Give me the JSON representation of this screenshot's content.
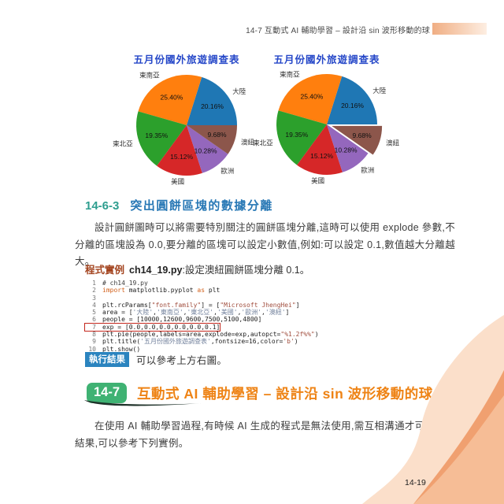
{
  "page": {
    "header_text": "14-7  互動式 AI 輔助學習 – 設計沿 sin 波形移動的球",
    "page_number": "14-19"
  },
  "colors": {
    "accent_green": "#3fb273",
    "accent_orange": "#ee8315",
    "result_badge_blue": "#2b84bf",
    "section_number_teal": "#2e9e8f",
    "section_title_blue": "#2878b5",
    "example_label_red": "#a3441f",
    "highlight_box_red": "#c3261c",
    "pie_title_blue": "#2547c8",
    "header_bar_orange": "#f0ae83"
  },
  "chart_data": [
    {
      "type": "pie",
      "title": "五月份國外旅遊調查表",
      "labels": [
        "大陸",
        "東南亞",
        "東北亞",
        "美國",
        "歐洲",
        "澳紐"
      ],
      "values": [
        10000,
        12600,
        9600,
        7500,
        5100,
        4800
      ],
      "percent_labels": [
        "20.16%",
        "25.40%",
        "19.35%",
        "15.12%",
        "10.28%",
        "9.68%"
      ],
      "colors": [
        "#1f77b4",
        "#ff7f0e",
        "#2ca02c",
        "#d62728",
        "#9467bd",
        "#8c564b"
      ],
      "explode": [
        0,
        0,
        0,
        0,
        0,
        0
      ],
      "start_angle": 0,
      "direction": "counterclockwise",
      "legend": false
    },
    {
      "type": "pie",
      "title": "五月份國外旅遊調查表",
      "labels": [
        "大陸",
        "東南亞",
        "東北亞",
        "美國",
        "歐洲",
        "澳紐"
      ],
      "values": [
        10000,
        12600,
        9600,
        7500,
        5100,
        4800
      ],
      "percent_labels": [
        "20.16%",
        "25.40%",
        "19.35%",
        "15.12%",
        "10.28%",
        "9.68%"
      ],
      "colors": [
        "#1f77b4",
        "#ff7f0e",
        "#2ca02c",
        "#d62728",
        "#9467bd",
        "#8c564b"
      ],
      "explode": [
        0,
        0,
        0,
        0,
        0,
        0.1
      ],
      "start_angle": 0,
      "direction": "counterclockwise",
      "legend": false
    }
  ],
  "section_1463": {
    "number": "14-6-3",
    "title": "突出圓餅區塊的數據分離",
    "body": "設計圓餅圖時可以將需要特別關注的圓餅區塊分離,這時可以使用 explode 參數,不分離的區塊設為 0.0,要分離的區塊可以設定小數值,例如:可以設定 0.1,數值越大分離越大。"
  },
  "example": {
    "label": "程式實例",
    "file": "ch14_19.py",
    "desc": ":設定澳紐圓餅區塊分離 0.1。"
  },
  "code": {
    "lines": [
      {
        "no": "1",
        "boxed": false,
        "tokens": [
          {
            "t": "# ch14_19.py",
            "c": "comment"
          }
        ]
      },
      {
        "no": "2",
        "boxed": false,
        "tokens": [
          {
            "t": "import",
            "c": "kw"
          },
          {
            "t": " matplotlib.pyplot ",
            "c": "plain"
          },
          {
            "t": "as",
            "c": "kw"
          },
          {
            "t": " plt",
            "c": "plain"
          }
        ]
      },
      {
        "no": "3",
        "boxed": false,
        "tokens": []
      },
      {
        "no": "4",
        "boxed": false,
        "tokens": [
          {
            "t": "plt.rcParams[",
            "c": "plain"
          },
          {
            "t": "\"font.family\"",
            "c": "str"
          },
          {
            "t": "] = [",
            "c": "plain"
          },
          {
            "t": "\"Microsoft JhengHei\"",
            "c": "str"
          },
          {
            "t": "]",
            "c": "plain"
          }
        ]
      },
      {
        "no": "5",
        "boxed": false,
        "tokens": [
          {
            "t": "area = [",
            "c": "plain"
          },
          {
            "t": "'大陸'",
            "c": "zhstr"
          },
          {
            "t": ",",
            "c": "plain"
          },
          {
            "t": "'東南亞'",
            "c": "zhstr"
          },
          {
            "t": ",",
            "c": "plain"
          },
          {
            "t": "'東北亞'",
            "c": "zhstr"
          },
          {
            "t": ",",
            "c": "plain"
          },
          {
            "t": "'美國'",
            "c": "zhstr"
          },
          {
            "t": ",",
            "c": "plain"
          },
          {
            "t": "'歐洲'",
            "c": "zhstr"
          },
          {
            "t": ",",
            "c": "plain"
          },
          {
            "t": "'澳紐'",
            "c": "zhstr"
          },
          {
            "t": "]",
            "c": "plain"
          }
        ]
      },
      {
        "no": "6",
        "boxed": false,
        "tokens": [
          {
            "t": "people = [10000,12600,9600,7500,5100,4800]",
            "c": "plain"
          }
        ]
      },
      {
        "no": "7",
        "boxed": true,
        "tokens": [
          {
            "t": "exp = [0.0,0.0,0.0,0.0,0.0,0.1]",
            "c": "plain"
          }
        ]
      },
      {
        "no": "8",
        "boxed": false,
        "tokens": [
          {
            "t": "plt.pie(people,labels=area,explode=exp,autopct=",
            "c": "plain"
          },
          {
            "t": "\"%1.2f%%\"",
            "c": "str"
          },
          {
            "t": ")",
            "c": "plain"
          }
        ]
      },
      {
        "no": "9",
        "boxed": false,
        "tokens": [
          {
            "t": "plt.title(",
            "c": "plain"
          },
          {
            "t": "'五月份國外旅遊調查表'",
            "c": "zhstr"
          },
          {
            "t": ",fontsize=16,color=",
            "c": "plain"
          },
          {
            "t": "'b'",
            "c": "str"
          },
          {
            "t": ")",
            "c": "plain"
          }
        ]
      },
      {
        "no": "10",
        "boxed": false,
        "tokens": [
          {
            "t": "plt.show()",
            "c": "plain"
          }
        ]
      }
    ]
  },
  "result": {
    "badge": "執行結果",
    "text": "可以參考上方右圖。"
  },
  "section_147": {
    "number": "14-7",
    "title": "互動式 AI 輔助學習 – 設計沿 sin 波形移動的球",
    "body": "在使用 AI 輔助學習過程,有時候 AI 生成的程式是無法使用,需互相溝通才可以獲得結果,可以參考下列實例。"
  }
}
